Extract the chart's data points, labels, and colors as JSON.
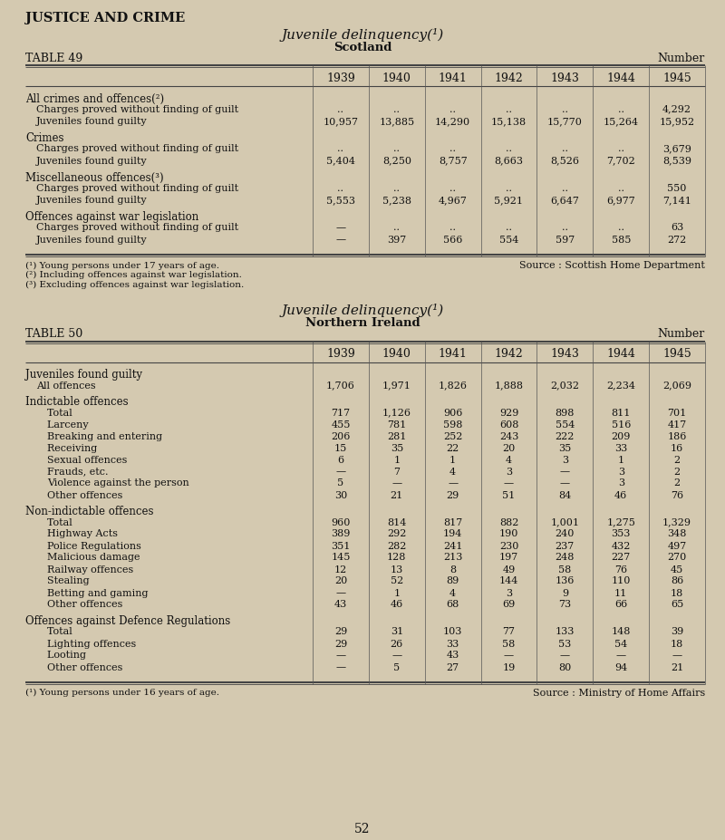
{
  "page_title": "JUSTICE AND CRIME",
  "bg_color": "#d4c9b0",
  "table49": {
    "title": "Juvenile delinquency(¹)",
    "subtitle": "Scotland",
    "table_label": "TABLE 49",
    "number_label": "Number",
    "years": [
      "1939",
      "1940",
      "1941",
      "1942",
      "1943",
      "1944",
      "1945"
    ],
    "rows": [
      {
        "section": "All crimes and offences(²)",
        "subrows": [
          {
            "label": "Charges proved without finding of guilt",
            "values": [
              "..",
              "..",
              "..",
              "..",
              "..",
              "..",
              "4,292"
            ],
            "label_indent": 1
          },
          {
            "label": "Juveniles found guilty             ",
            "values": [
              "10,957",
              "13,885",
              "14,290",
              "15,138",
              "15,770",
              "15,264",
              "15,952"
            ],
            "label_indent": 1
          }
        ]
      },
      {
        "section": "Crimes",
        "subrows": [
          {
            "label": "Charges proved without finding of guilt",
            "values": [
              "..",
              "..",
              "..",
              "..",
              "..",
              "..",
              "3,679"
            ],
            "label_indent": 1
          },
          {
            "label": "Juveniles found guilty             ",
            "values": [
              "5,404",
              "8,250",
              "8,757",
              "8,663",
              "8,526",
              "7,702",
              "8,539"
            ],
            "label_indent": 1
          }
        ]
      },
      {
        "section": "Miscellaneous offences(³)",
        "subrows": [
          {
            "label": "Charges proved without finding of guilt",
            "values": [
              "..",
              "..",
              "..",
              "..",
              "..",
              "..",
              "550"
            ],
            "label_indent": 1
          },
          {
            "label": "Juveniles found guilty             ",
            "values": [
              "5,553",
              "5,238",
              "4,967",
              "5,921",
              "6,647",
              "6,977",
              "7,141"
            ],
            "label_indent": 1
          }
        ]
      },
      {
        "section": "Offences against war legislation",
        "subrows": [
          {
            "label": "Charges proved without finding of guilt",
            "values": [
              "—",
              "..",
              "..",
              "..",
              "..",
              "..",
              "63"
            ],
            "label_indent": 1
          },
          {
            "label": "Juveniles found guilty             ",
            "values": [
              "—",
              "397",
              "566",
              "554",
              "597",
              "585",
              "272"
            ],
            "label_indent": 1
          }
        ]
      }
    ],
    "footnotes": [
      "(¹) Young persons under 17 years of age.",
      "(²) Including offences against war legislation.",
      "(³) Excluding offences against war legislation."
    ],
    "source": "Source : Scottish Home Department"
  },
  "table50": {
    "title": "Juvenile delinquency(¹)",
    "subtitle": "Northern Ireland",
    "table_label": "TABLE 50",
    "number_label": "Number",
    "years": [
      "1939",
      "1940",
      "1941",
      "1942",
      "1943",
      "1944",
      "1945"
    ],
    "rows": [
      {
        "section": "Juveniles found guilty",
        "subrows": [
          {
            "label": "All offences                         ",
            "values": [
              "1,706",
              "1,971",
              "1,826",
              "1,888",
              "2,032",
              "2,234",
              "2,069"
            ],
            "label_indent": 1
          }
        ]
      },
      {
        "section": "Indictable offences",
        "subrows": [
          {
            "label": "Total                            ",
            "values": [
              "717",
              "1,126",
              "906",
              "929",
              "898",
              "811",
              "701"
            ],
            "label_indent": 2
          },
          {
            "label": "Larceny                            ",
            "values": [
              "455",
              "781",
              "598",
              "608",
              "554",
              "516",
              "417"
            ],
            "label_indent": 2
          },
          {
            "label": "Breaking and entering             ",
            "values": [
              "206",
              "281",
              "252",
              "243",
              "222",
              "209",
              "186"
            ],
            "label_indent": 2
          },
          {
            "label": "Receiving                         ",
            "values": [
              "15",
              "35",
              "22",
              "20",
              "35",
              "33",
              "16"
            ],
            "label_indent": 2
          },
          {
            "label": "Sexual offences                  ",
            "values": [
              "6",
              "1",
              "1",
              "4",
              "3",
              "1",
              "2"
            ],
            "label_indent": 2
          },
          {
            "label": "Frauds, etc.                      ",
            "values": [
              "—",
              "7",
              "4",
              "3",
              "—",
              "3",
              "2"
            ],
            "label_indent": 2
          },
          {
            "label": "Violence against the person        ",
            "values": [
              "5",
              "—",
              "—",
              "—",
              "—",
              "3",
              "2"
            ],
            "label_indent": 2
          },
          {
            "label": "Other offences                  ",
            "values": [
              "30",
              "21",
              "29",
              "51",
              "84",
              "46",
              "76"
            ],
            "label_indent": 2
          }
        ]
      },
      {
        "section": "Non-indictable offences",
        "subrows": [
          {
            "label": "Total                            ",
            "values": [
              "960",
              "814",
              "817",
              "882",
              "1,001",
              "1,275",
              "1,329"
            ],
            "label_indent": 2
          },
          {
            "label": "Highway Acts                  ",
            "values": [
              "389",
              "292",
              "194",
              "190",
              "240",
              "353",
              "348"
            ],
            "label_indent": 2
          },
          {
            "label": "Police Regulations             ",
            "values": [
              "351",
              "282",
              "241",
              "230",
              "237",
              "432",
              "497"
            ],
            "label_indent": 2
          },
          {
            "label": "Malicious damage              ",
            "values": [
              "145",
              "128",
              "213",
              "197",
              "248",
              "227",
              "270"
            ],
            "label_indent": 2
          },
          {
            "label": "Railway offences              ",
            "values": [
              "12",
              "13",
              "8",
              "49",
              "58",
              "76",
              "45"
            ],
            "label_indent": 2
          },
          {
            "label": "Stealing                          ",
            "values": [
              "20",
              "52",
              "89",
              "144",
              "136",
              "110",
              "86"
            ],
            "label_indent": 2
          },
          {
            "label": "Betting and gaming            ",
            "values": [
              "—",
              "1",
              "4",
              "3",
              "9",
              "11",
              "18"
            ],
            "label_indent": 2
          },
          {
            "label": "Other offences                  ",
            "values": [
              "43",
              "46",
              "68",
              "69",
              "73",
              "66",
              "65"
            ],
            "label_indent": 2
          }
        ]
      },
      {
        "section": "Offences against Defence Regulations",
        "subrows": [
          {
            "label": "Total                            ",
            "values": [
              "29",
              "31",
              "103",
              "77",
              "133",
              "148",
              "39"
            ],
            "label_indent": 2
          },
          {
            "label": "Lighting offences              ",
            "values": [
              "29",
              "26",
              "33",
              "58",
              "53",
              "54",
              "18"
            ],
            "label_indent": 2
          },
          {
            "label": "Looting                           ",
            "values": [
              "—",
              "—",
              "43",
              "—",
              "—",
              "—",
              "—"
            ],
            "label_indent": 2
          },
          {
            "label": "Other offences                  ",
            "values": [
              "—",
              "5",
              "27",
              "19",
              "80",
              "94",
              "21"
            ],
            "label_indent": 2
          }
        ]
      }
    ],
    "footnotes": [
      "(¹) Young persons under 16 years of age."
    ],
    "source": "Source : Ministry of Home Affairs",
    "page_number": "52"
  }
}
